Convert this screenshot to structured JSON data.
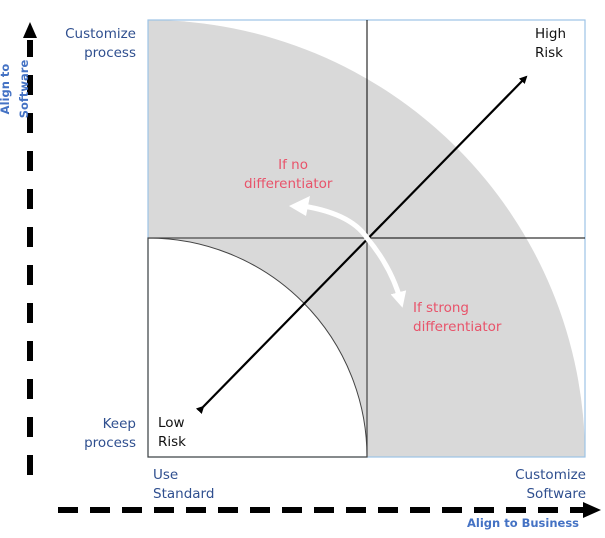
{
  "axes": {
    "y_label": "Align to Software",
    "x_label": "Align to Business"
  },
  "y_ticks": {
    "top": "Customize process",
    "bottom": "Keep process"
  },
  "x_ticks": {
    "left": "Use Standard",
    "right": "Customize Software"
  },
  "quadrant_labels": {
    "high": "High Risk",
    "low": "Low Risk"
  },
  "annotations": {
    "no_diff": "If no differentiator",
    "strong_diff": "If strong differentiator"
  },
  "colors": {
    "axis_label": "#4472c4",
    "tick_label": "#2f4f8f",
    "annotation": "#e8536a",
    "region_fill": "#d9d9d9",
    "frame": "#9dc3e6"
  }
}
